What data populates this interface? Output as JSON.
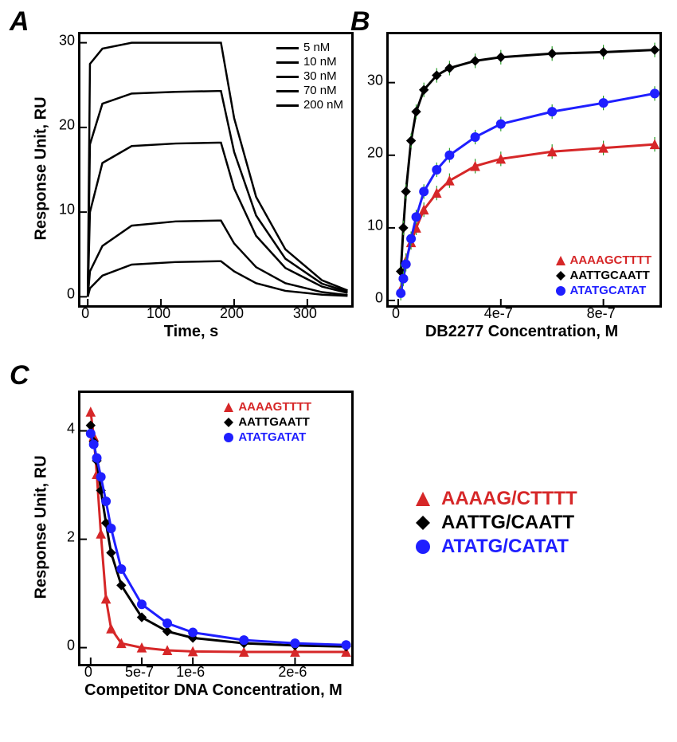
{
  "panelA": {
    "label": "A",
    "type": "line",
    "xlabel": "Time, s",
    "ylabel": "Response Unit, RU",
    "xlim": [
      -10,
      360
    ],
    "ylim": [
      -1,
      31
    ],
    "xtick_vals": [
      0,
      100,
      200,
      300
    ],
    "ytick_vals": [
      0,
      10,
      20,
      30
    ],
    "background_color": "#ffffff",
    "line_color": "#000000",
    "line_width": 2.5,
    "label_fontsize": 20,
    "tick_fontsize": 18,
    "legend_items": [
      "5 nM",
      "10 nM",
      "30 nM",
      "70 nM",
      "200 nM"
    ],
    "legend_fontsize": 15,
    "series": [
      {
        "label": "5 nM",
        "plateau": 4.2,
        "points": [
          [
            0,
            0
          ],
          [
            3,
            1
          ],
          [
            20,
            2.5
          ],
          [
            60,
            3.8
          ],
          [
            120,
            4.1
          ],
          [
            178,
            4.2
          ],
          [
            182,
            4.2
          ],
          [
            200,
            3
          ],
          [
            230,
            1.6
          ],
          [
            270,
            0.7
          ],
          [
            320,
            0.25
          ],
          [
            355,
            0.1
          ]
        ]
      },
      {
        "label": "10 nM",
        "plateau": 9,
        "points": [
          [
            0,
            0
          ],
          [
            3,
            3
          ],
          [
            20,
            6
          ],
          [
            60,
            8.4
          ],
          [
            120,
            8.9
          ],
          [
            178,
            9
          ],
          [
            182,
            9
          ],
          [
            200,
            6.3
          ],
          [
            230,
            3.5
          ],
          [
            270,
            1.6
          ],
          [
            320,
            0.55
          ],
          [
            355,
            0.2
          ]
        ]
      },
      {
        "label": "30 nM",
        "plateau": 18.2,
        "points": [
          [
            0,
            0
          ],
          [
            3,
            10
          ],
          [
            20,
            15.8
          ],
          [
            60,
            17.8
          ],
          [
            120,
            18.1
          ],
          [
            178,
            18.2
          ],
          [
            182,
            18.2
          ],
          [
            200,
            12.8
          ],
          [
            230,
            7.2
          ],
          [
            270,
            3.4
          ],
          [
            320,
            1.2
          ],
          [
            355,
            0.45
          ]
        ]
      },
      {
        "label": "70 nM",
        "plateau": 24.3,
        "points": [
          [
            0,
            0
          ],
          [
            3,
            18
          ],
          [
            20,
            22.8
          ],
          [
            60,
            24
          ],
          [
            120,
            24.2
          ],
          [
            178,
            24.3
          ],
          [
            182,
            24.3
          ],
          [
            200,
            17.1
          ],
          [
            230,
            9.6
          ],
          [
            270,
            4.5
          ],
          [
            320,
            1.55
          ],
          [
            355,
            0.6
          ]
        ]
      },
      {
        "label": "200 nM",
        "plateau": 30,
        "points": [
          [
            0,
            0
          ],
          [
            3,
            27.5
          ],
          [
            20,
            29.3
          ],
          [
            60,
            30
          ],
          [
            120,
            30
          ],
          [
            178,
            30
          ],
          [
            182,
            30
          ],
          [
            200,
            21.1
          ],
          [
            230,
            11.8
          ],
          [
            270,
            5.6
          ],
          [
            320,
            1.95
          ],
          [
            355,
            0.75
          ]
        ]
      }
    ]
  },
  "panelB": {
    "label": "B",
    "type": "scatter-line",
    "xlabel": "DB2277 Concentration, M",
    "ylabel": "",
    "xlim": [
      0,
      1e-06
    ],
    "ylim": [
      0,
      36
    ],
    "xtick_labels": [
      "0",
      "4e-7",
      "8e-7"
    ],
    "xtick_vals": [
      0,
      4e-07,
      8e-07
    ],
    "ytick_vals": [
      0,
      10,
      20,
      30
    ],
    "label_fontsize": 20,
    "tick_fontsize": 18,
    "background_color": "#ffffff",
    "series": [
      {
        "label": "AAAAGCTTTT",
        "color": "#d62728",
        "marker": "triangle",
        "line_width": 3,
        "points": [
          [
            1e-08,
            1.5
          ],
          [
            2e-08,
            3.5
          ],
          [
            3e-08,
            5.5
          ],
          [
            5e-08,
            8
          ],
          [
            7e-08,
            10
          ],
          [
            1e-07,
            12.5
          ],
          [
            1.5e-07,
            14.8
          ],
          [
            2e-07,
            16.5
          ],
          [
            3e-07,
            18.5
          ],
          [
            4e-07,
            19.5
          ],
          [
            6e-07,
            20.5
          ],
          [
            8e-07,
            21
          ],
          [
            1e-06,
            21.5
          ]
        ]
      },
      {
        "label": "AATTGCAATT",
        "color": "#000000",
        "marker": "diamond",
        "line_width": 3,
        "points": [
          [
            1e-08,
            4
          ],
          [
            2e-08,
            10
          ],
          [
            3e-08,
            15
          ],
          [
            5e-08,
            22
          ],
          [
            7e-08,
            26
          ],
          [
            1e-07,
            29
          ],
          [
            1.5e-07,
            31
          ],
          [
            2e-07,
            32
          ],
          [
            3e-07,
            33
          ],
          [
            4e-07,
            33.5
          ],
          [
            6e-07,
            34
          ],
          [
            8e-07,
            34.2
          ],
          [
            1e-06,
            34.5
          ]
        ]
      },
      {
        "label": "ATATGCATAT",
        "color": "#1f1fff",
        "marker": "circle",
        "line_width": 3,
        "points": [
          [
            1e-08,
            1
          ],
          [
            2e-08,
            3
          ],
          [
            3e-08,
            5
          ],
          [
            5e-08,
            8.5
          ],
          [
            7e-08,
            11.5
          ],
          [
            1e-07,
            15
          ],
          [
            1.5e-07,
            18
          ],
          [
            2e-07,
            20
          ],
          [
            3e-07,
            22.5
          ],
          [
            4e-07,
            24.3
          ],
          [
            6e-07,
            26
          ],
          [
            8e-07,
            27.2
          ],
          [
            1e-06,
            28.5
          ]
        ]
      }
    ],
    "errorbar_color": "#2ca02c",
    "errorbar_halfheight": 1.0
  },
  "panelC": {
    "label": "C",
    "type": "scatter-line",
    "xlabel": "Competitor DNA Concentration, M",
    "ylabel": "Response Unit, RU",
    "xlim": [
      -1e-07,
      2.55e-06
    ],
    "ylim": [
      -0.3,
      4.7
    ],
    "xtick_labels": [
      "0",
      "5e-7",
      "1e-6",
      "2e-6"
    ],
    "xtick_vals": [
      0,
      5e-07,
      1e-06,
      2e-06
    ],
    "ytick_vals": [
      0,
      2,
      4
    ],
    "label_fontsize": 20,
    "tick_fontsize": 18,
    "background_color": "#ffffff",
    "series": [
      {
        "label": "AAAAGTTTT",
        "color": "#d62728",
        "marker": "triangle",
        "line_width": 3,
        "points": [
          [
            0,
            4.35
          ],
          [
            3e-08,
            3.9
          ],
          [
            6e-08,
            3.2
          ],
          [
            1e-07,
            2.1
          ],
          [
            1.5e-07,
            0.9
          ],
          [
            2e-07,
            0.35
          ],
          [
            3e-07,
            0.08
          ],
          [
            5e-07,
            0
          ],
          [
            7.5e-07,
            -0.05
          ],
          [
            1e-06,
            -0.07
          ],
          [
            1.5e-06,
            -0.08
          ],
          [
            2e-06,
            -0.08
          ],
          [
            2.5e-06,
            -0.08
          ]
        ]
      },
      {
        "label": "AATTGAATT",
        "color": "#000000",
        "marker": "diamond",
        "line_width": 3,
        "points": [
          [
            0,
            4.1
          ],
          [
            3e-08,
            3.8
          ],
          [
            6e-08,
            3.45
          ],
          [
            1e-07,
            2.9
          ],
          [
            1.5e-07,
            2.3
          ],
          [
            2e-07,
            1.75
          ],
          [
            3e-07,
            1.15
          ],
          [
            5e-07,
            0.56
          ],
          [
            7.5e-07,
            0.3
          ],
          [
            1e-06,
            0.18
          ],
          [
            1.5e-06,
            0.08
          ],
          [
            2e-06,
            0.04
          ],
          [
            2.5e-06,
            0.02
          ]
        ]
      },
      {
        "label": "ATATGATAT",
        "color": "#1f1fff",
        "marker": "circle",
        "line_width": 3,
        "points": [
          [
            0,
            3.95
          ],
          [
            3e-08,
            3.75
          ],
          [
            6e-08,
            3.5
          ],
          [
            1e-07,
            3.15
          ],
          [
            1.5e-07,
            2.7
          ],
          [
            2e-07,
            2.2
          ],
          [
            3e-07,
            1.45
          ],
          [
            5e-07,
            0.8
          ],
          [
            7.5e-07,
            0.45
          ],
          [
            1e-06,
            0.28
          ],
          [
            1.5e-06,
            0.14
          ],
          [
            2e-06,
            0.08
          ],
          [
            2.5e-06,
            0.05
          ]
        ]
      }
    ]
  },
  "big_legend": {
    "items": [
      {
        "label": "AAAAG/CTTTT",
        "color": "#d62728",
        "marker": "triangle"
      },
      {
        "label": "AATTG/CAATT",
        "color": "#000000",
        "marker": "diamond"
      },
      {
        "label": "ATATG/CATAT",
        "color": "#1f1fff",
        "marker": "circle"
      }
    ],
    "fontsize": 24
  },
  "colors": {
    "red": "#d62728",
    "black": "#000000",
    "blue": "#1f1fff",
    "green_err": "#2ca02c",
    "background": "#ffffff"
  }
}
